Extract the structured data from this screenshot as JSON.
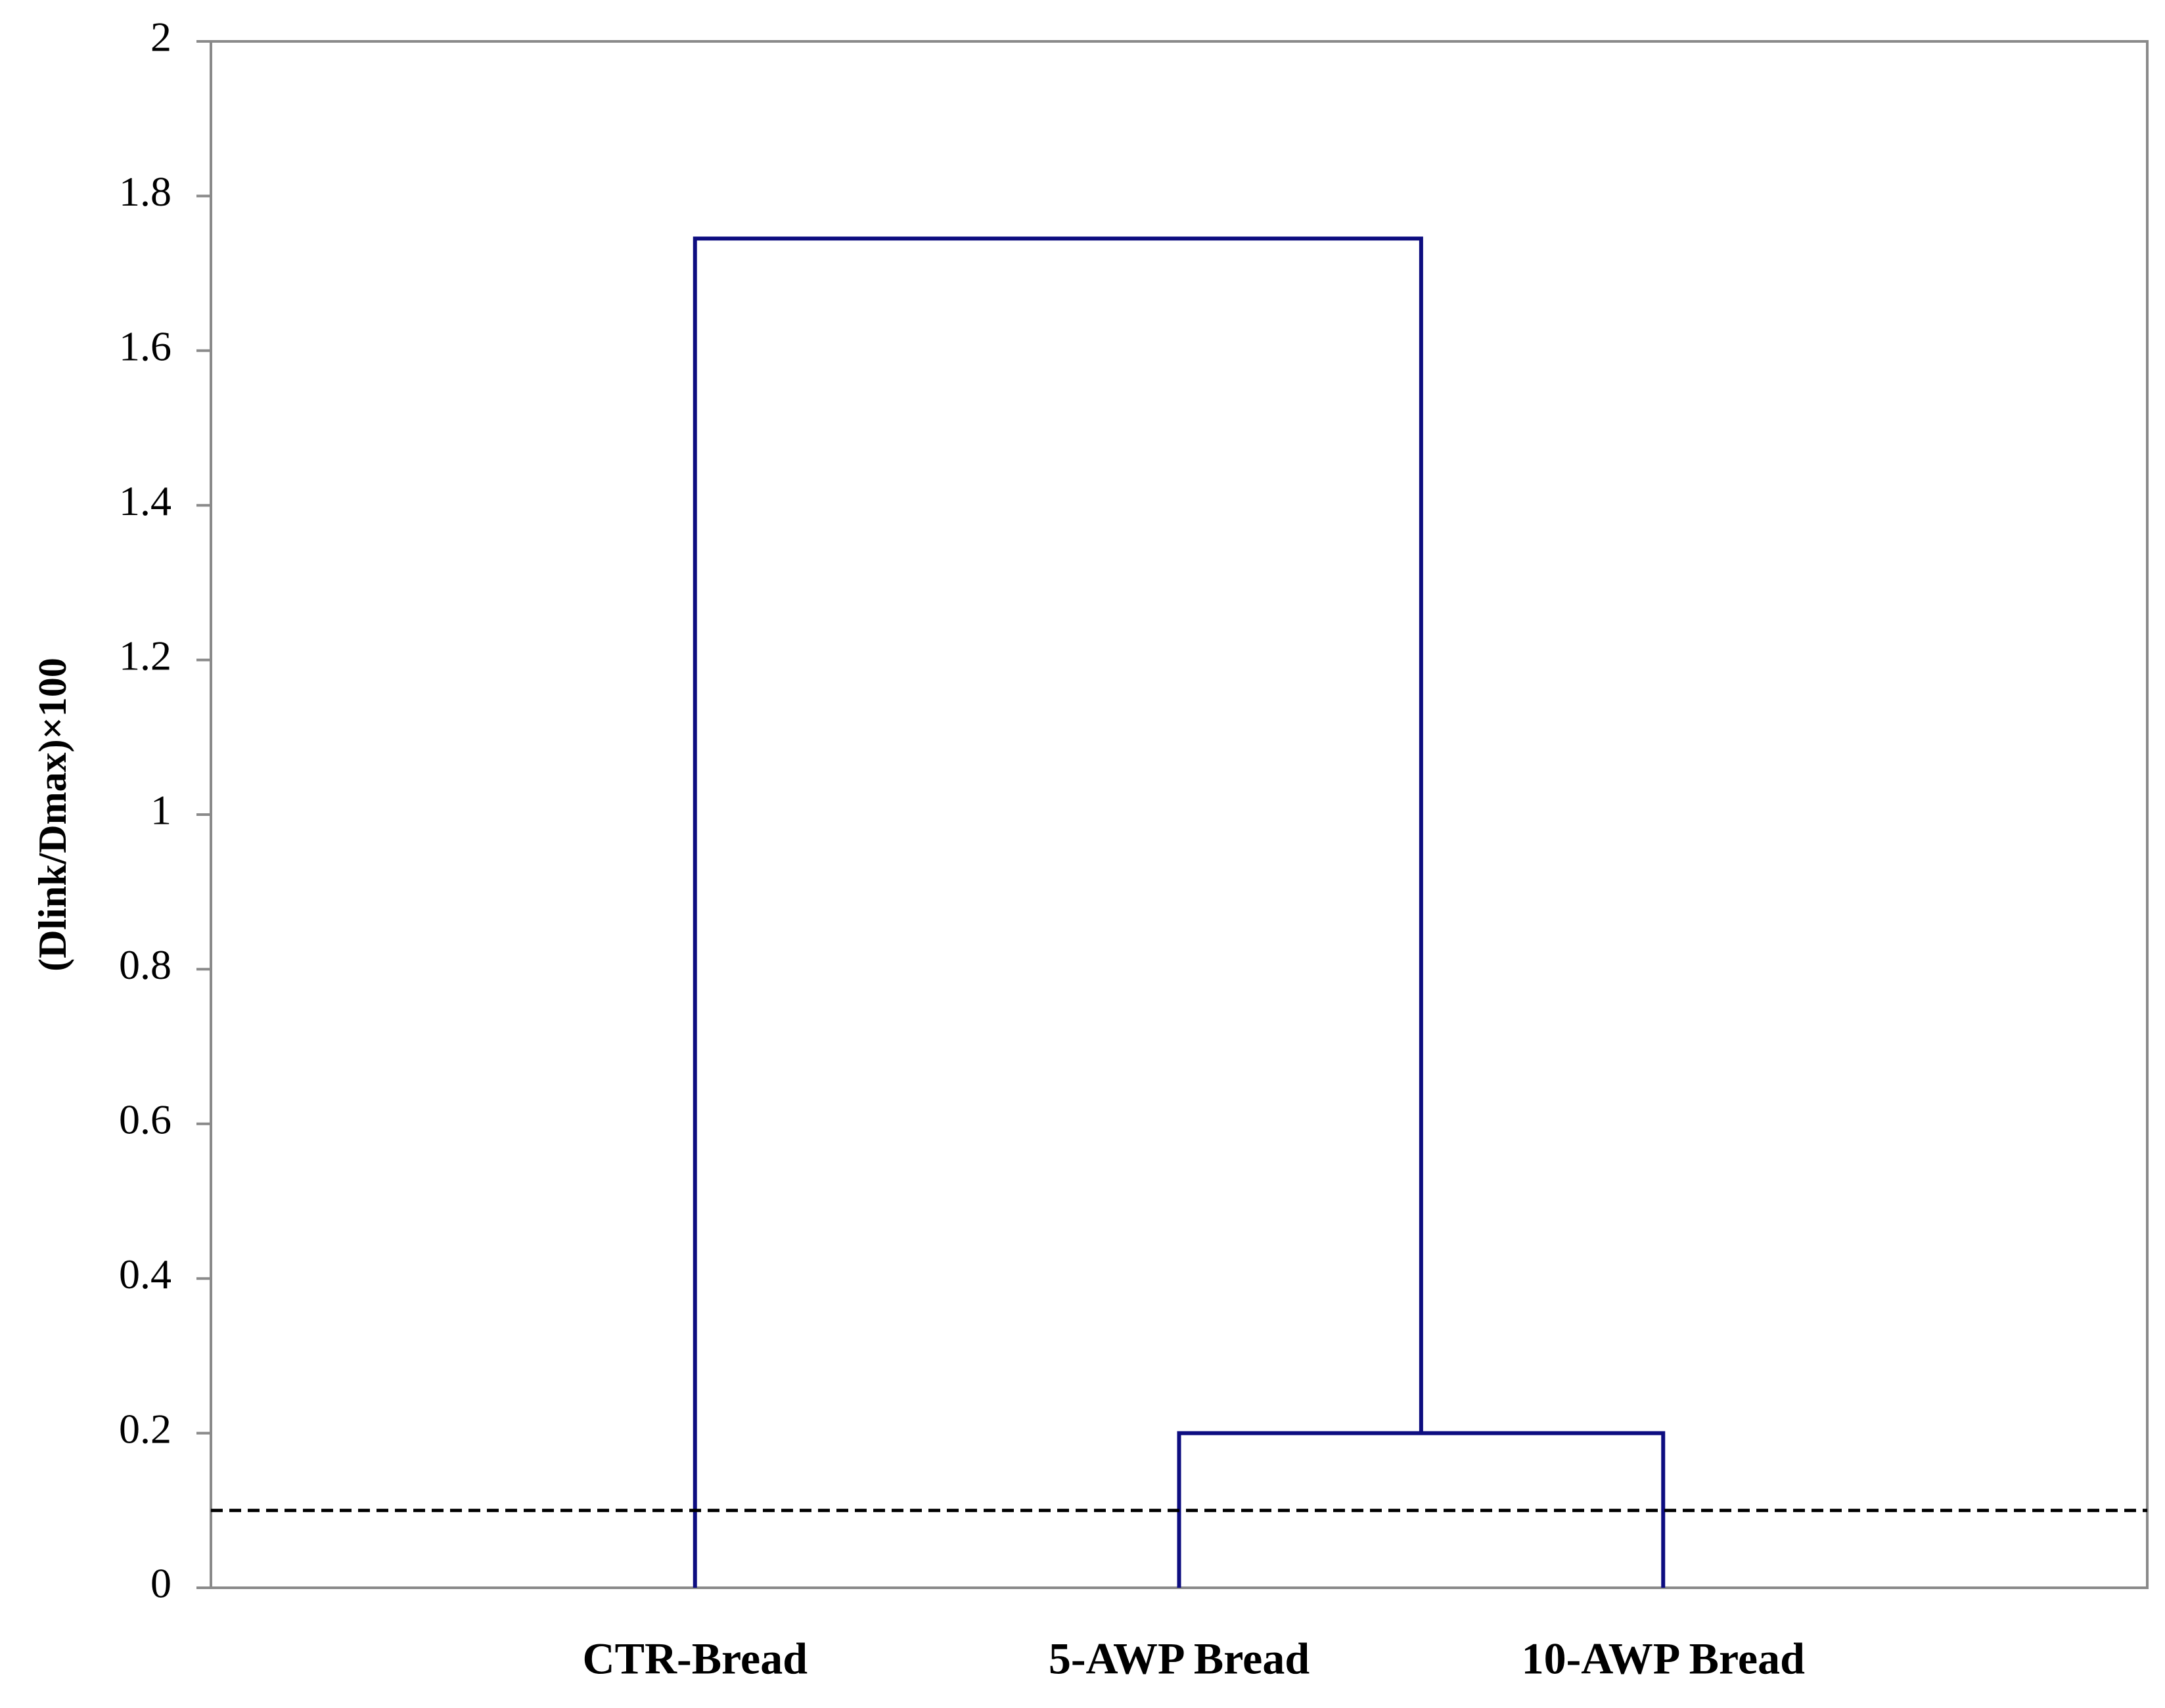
{
  "chart_data": {
    "type": "dendrogram",
    "y_label": "(Dlink/Dmax)×100",
    "categories": [
      "CTR-Bread",
      "5-AWP Bread",
      "10-AWP Bread"
    ],
    "linkage": [
      [
        1,
        2,
        0.2
      ],
      [
        0,
        3,
        1.745
      ]
    ],
    "threshold": 0.1,
    "color": "#0d0d80",
    "ylim": [
      0,
      2
    ],
    "yticks": [
      0,
      0.2,
      0.4,
      0.6,
      0.8,
      1,
      1.2,
      1.4,
      1.6,
      1.8,
      2
    ]
  }
}
